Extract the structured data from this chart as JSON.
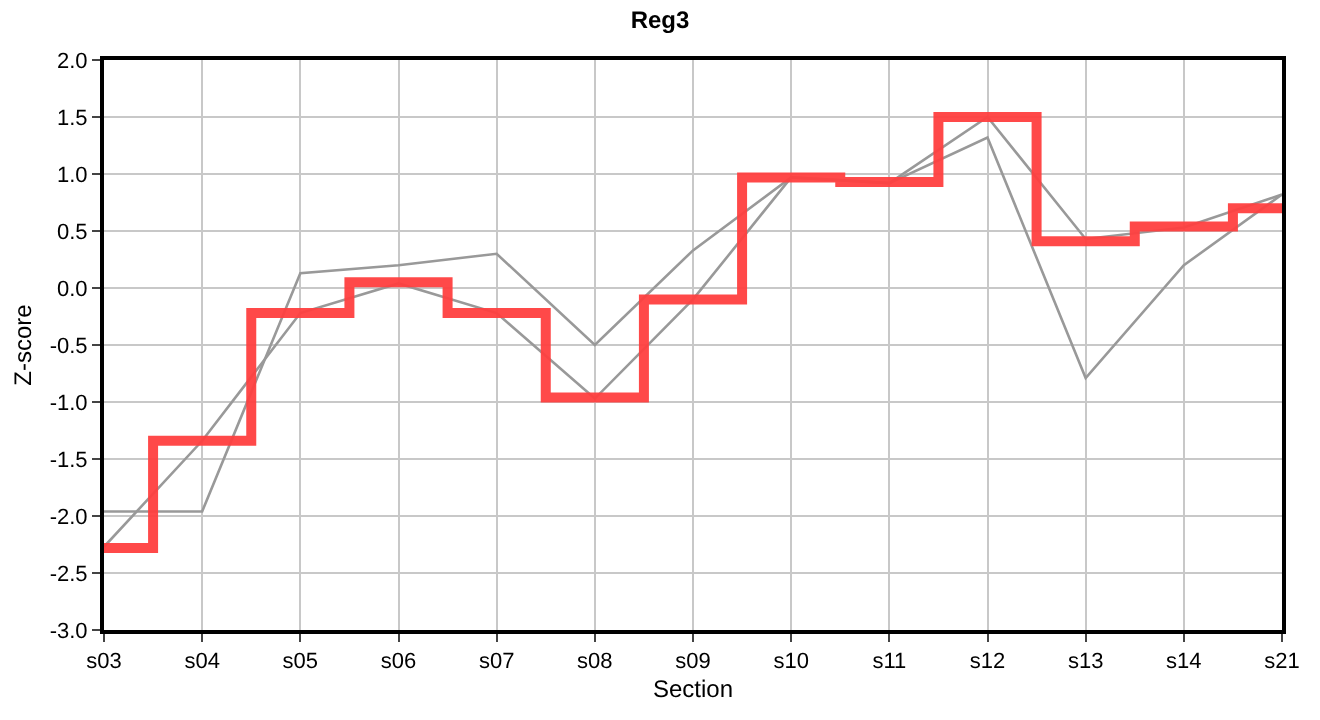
{
  "chart_data": {
    "type": "line",
    "title": "Reg3",
    "xlabel": "Section",
    "ylabel": "Z-score",
    "categories": [
      "s03",
      "s04",
      "s05",
      "s06",
      "s07",
      "s08",
      "s09",
      "s10",
      "s11",
      "s12",
      "s13",
      "s14",
      "s21"
    ],
    "series": [
      {
        "color": "#999999",
        "values": [
          -1.96,
          -1.96,
          0.13,
          0.2,
          0.3,
          -0.5,
          0.33,
          0.97,
          0.92,
          1.5,
          0.43,
          0.53,
          0.82
        ]
      },
      {
        "color": "#999999",
        "values": [
          -2.27,
          -1.34,
          -0.22,
          0.04,
          -0.22,
          -0.97,
          -0.1,
          0.97,
          0.92,
          1.32,
          -0.79,
          0.2,
          0.82
        ]
      },
      {
        "type": "step",
        "color": "#ff4040",
        "values": [
          -2.28,
          -1.34,
          -0.22,
          0.05,
          -0.22,
          -0.96,
          -0.1,
          0.97,
          0.93,
          1.5,
          0.41,
          0.54,
          0.7
        ]
      }
    ],
    "ylim": [
      -3,
      2
    ],
    "yticks": [
      {
        "value": -3,
        "label": "-3.0"
      },
      {
        "value": -2.5,
        "label": "-2.5"
      },
      {
        "value": -2,
        "label": "-2.0"
      },
      {
        "value": -1.5,
        "label": "-1.5"
      },
      {
        "value": -1,
        "label": "-1.0"
      },
      {
        "value": -0.5,
        "label": "-0.5"
      },
      {
        "value": 0,
        "label": "0.0"
      },
      {
        "value": 0.5,
        "label": "0.5"
      },
      {
        "value": 1,
        "label": "1.0"
      },
      {
        "value": 1.5,
        "label": "1.5"
      },
      {
        "value": 2,
        "label": "2.0"
      }
    ],
    "grid": true,
    "marker": "none",
    "line_style": "solid"
  }
}
